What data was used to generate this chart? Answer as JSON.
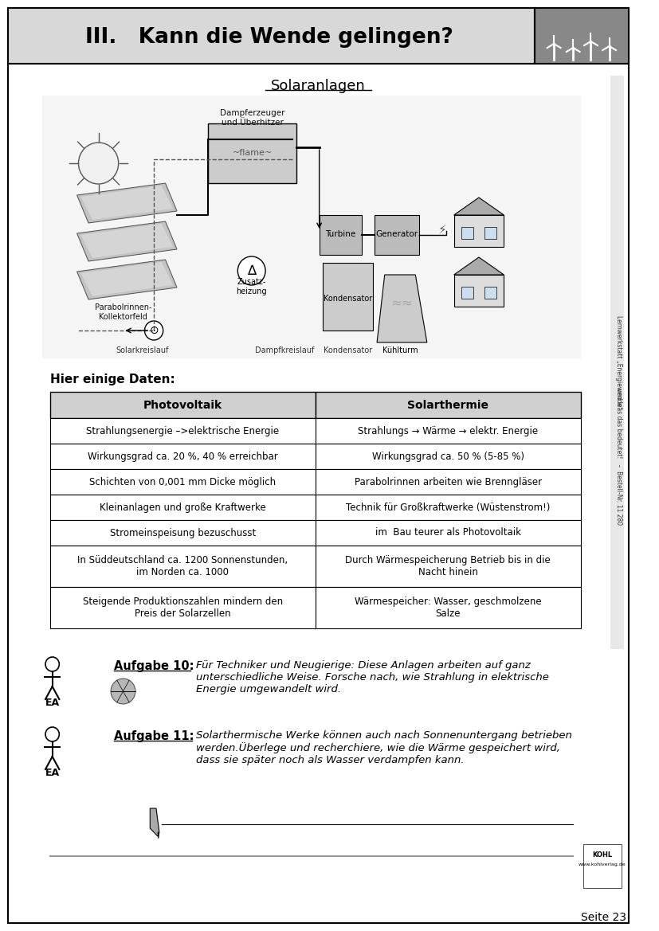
{
  "page_title": "III.   Kann die Wende gelingen?",
  "section_title": "Solaranlagen",
  "hier_einige": "Hier einige Daten:",
  "table_header": [
    "Photovoltaik",
    "Solarthermie"
  ],
  "table_rows": [
    [
      "Strahlungsenergie –>elektrische Energie",
      "Strahlungs → Wärme → elektr. Energie"
    ],
    [
      "Wirkungsgrad ca. 20 %, 40 % erreichbar",
      "Wirkungsgrad ca. 50 % (5-85 %)"
    ],
    [
      "Schichten von 0,001 mm Dicke möglich",
      "Parabolrinnen arbeiten wie Brenngläser"
    ],
    [
      "Kleinanlagen und große Kraftwerke",
      "Technik für Großkraftwerke (Wüstenstrom!)"
    ],
    [
      "Stromeinspeisung bezuschusst",
      "im  Bau teurer als Photovoltaik"
    ],
    [
      "In Süddeutschland ca. 1200 Sonnenstunden,\nim Norden ca. 1000",
      "Durch Wärmespeicherung Betrieb bis in die\nNacht hinein"
    ],
    [
      "Steigende Produktionszahlen mindern den\nPreis der Solarzellen",
      "Wärmespeicher: Wasser, geschmolzene\nSalze"
    ]
  ],
  "aufgabe10_label": "Aufgabe 10:",
  "aufgabe10_text": "Für Techniker und Neugierige: Diese Anlagen arbeiten auf ganz\nunterschiedliche Weise. Forsche nach, wie Strahlung in elektrische\nEnergie umgewandelt wird.",
  "aufgabe11_label": "Aufgabe 11:",
  "aufgabe11_text": "Solarthermische Werke können auch nach Sonnenuntergang betrieben\nwerden.Überlege und recherchiere, wie die Wärme gespeichert wird,\ndass sie später noch als Wasser verdampfen kann.",
  "ea_label": "EA",
  "sidebar_line1": "Lernwerkstatt „Energiewende“",
  "sidebar_line2": "– und was das bedeutet!   –  Bestell-Nr. 11 280",
  "page_number": "Seite 23",
  "bg_color": "#ffffff",
  "header_bg": "#d8d8d8",
  "table_header_bg": "#d0d0d0",
  "border_color": "#000000"
}
